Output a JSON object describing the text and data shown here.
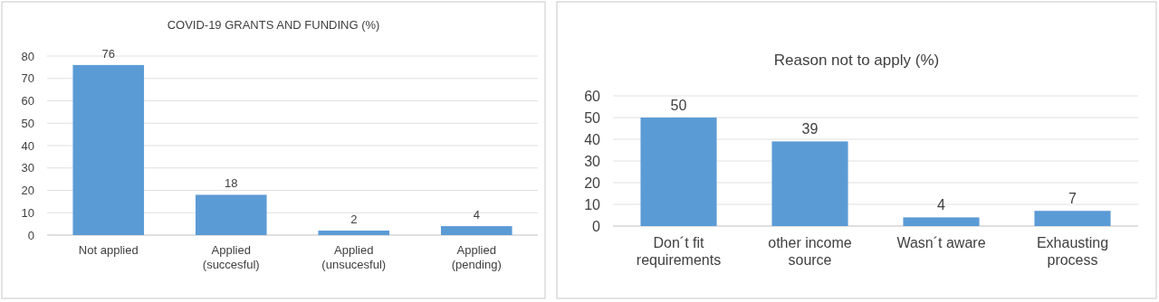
{
  "chart_data": [
    {
      "type": "bar",
      "title": "COVID-19 GRANTS AND FUNDING (%)",
      "categories": [
        "Not applied",
        "Applied (succesful)",
        "Applied (unsucesful)",
        "Applied (pending)"
      ],
      "values": [
        76,
        18,
        2,
        4
      ],
      "color": "#5b9bd5",
      "ylim": [
        0,
        80
      ],
      "yticks": [
        0,
        10,
        20,
        30,
        40,
        50,
        60,
        70,
        80
      ],
      "grid": "y",
      "data_labels": true
    },
    {
      "type": "bar",
      "title": "Reason not to apply (%)",
      "categories": [
        "Don´t fit requirements",
        "other income source",
        "Wasn´t aware",
        "Exhausting process"
      ],
      "values": [
        50,
        39,
        4,
        7
      ],
      "color": "#5b9bd5",
      "ylim": [
        0,
        60
      ],
      "yticks": [
        0,
        10,
        20,
        30,
        40,
        50,
        60
      ],
      "grid": "y",
      "data_labels": true
    }
  ]
}
